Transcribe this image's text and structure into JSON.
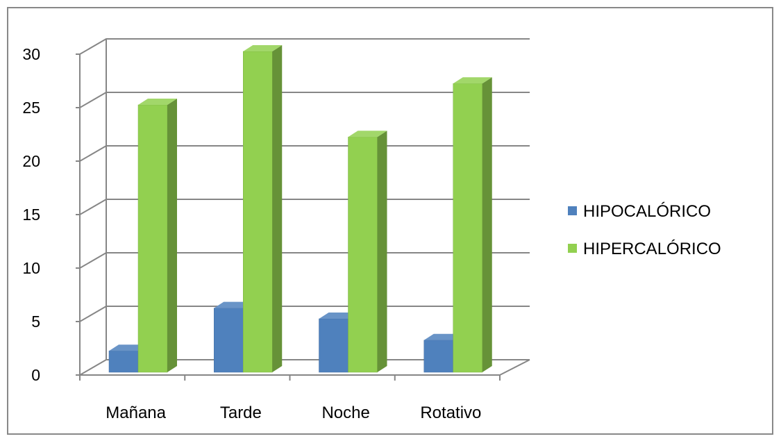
{
  "chart_data": {
    "type": "bar",
    "title": "",
    "xlabel": "",
    "ylabel": "",
    "categories": [
      "Mañana",
      "Tarde",
      "Noche",
      "Rotativo"
    ],
    "series": [
      {
        "name": "HIPOCALÓRICO",
        "values": [
          2,
          6,
          5,
          3
        ],
        "color": "#4F81BD"
      },
      {
        "name": "HIPERCALÓRICO",
        "values": [
          25,
          30,
          22,
          27
        ],
        "color": "#92D050"
      }
    ],
    "ylim": [
      0,
      30
    ],
    "yticks": [
      "0",
      "5",
      "10",
      "15",
      "20",
      "25",
      "30"
    ],
    "grid": true,
    "legend": "right",
    "style": "3d-clustered-column"
  }
}
